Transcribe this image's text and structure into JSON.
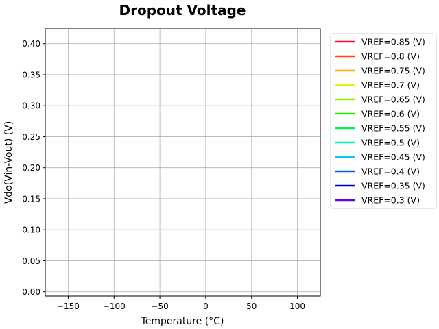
{
  "chart_data": {
    "type": "line",
    "title": "Dropout Voltage",
    "xlabel": "Temperature (°C)",
    "ylabel": "Vdo(Vin-Vout) (V)",
    "xlim": [
      -175,
      125
    ],
    "ylim": [
      -0.007,
      0.424
    ],
    "xticks": [
      -150,
      -100,
      -50,
      0,
      50,
      100
    ],
    "xtick_labels": [
      "−150",
      "−100",
      "−50",
      "0",
      "50",
      "100"
    ],
    "yticks": [
      0.0,
      0.05,
      0.1,
      0.15,
      0.2,
      0.25,
      0.3,
      0.35,
      0.4
    ],
    "ytick_labels": [
      "0.00",
      "0.05",
      "0.10",
      "0.15",
      "0.20",
      "0.25",
      "0.30",
      "0.35",
      "0.40"
    ],
    "grid": true,
    "legend_position": "outside-upper-right",
    "series": [
      {
        "name": "VREF=0.85 (V)",
        "color": "#ff0d26",
        "x": [],
        "y": []
      },
      {
        "name": "VREF=0.8 (V)",
        "color": "#ff4a00",
        "x": [],
        "y": []
      },
      {
        "name": "VREF=0.75 (V)",
        "color": "#ffa500",
        "x": [],
        "y": []
      },
      {
        "name": "VREF=0.7 (V)",
        "color": "#e8ef00",
        "x": [],
        "y": []
      },
      {
        "name": "VREF=0.65 (V)",
        "color": "#86f500",
        "x": [],
        "y": []
      },
      {
        "name": "VREF=0.6 (V)",
        "color": "#1cf000",
        "x": [],
        "y": []
      },
      {
        "name": "VREF=0.55 (V)",
        "color": "#00ee5a",
        "x": [],
        "y": []
      },
      {
        "name": "VREF=0.5 (V)",
        "color": "#00f5ba",
        "x": [],
        "y": []
      },
      {
        "name": "VREF=0.45 (V)",
        "color": "#00ccf5",
        "x": [],
        "y": []
      },
      {
        "name": "VREF=0.4 (V)",
        "color": "#0066e8",
        "x": [],
        "y": []
      },
      {
        "name": "VREF=0.35 (V)",
        "color": "#0000dd",
        "x": [],
        "y": []
      },
      {
        "name": "VREF=0.3 (V)",
        "color": "#6a00dd",
        "x": [],
        "y": []
      }
    ]
  }
}
